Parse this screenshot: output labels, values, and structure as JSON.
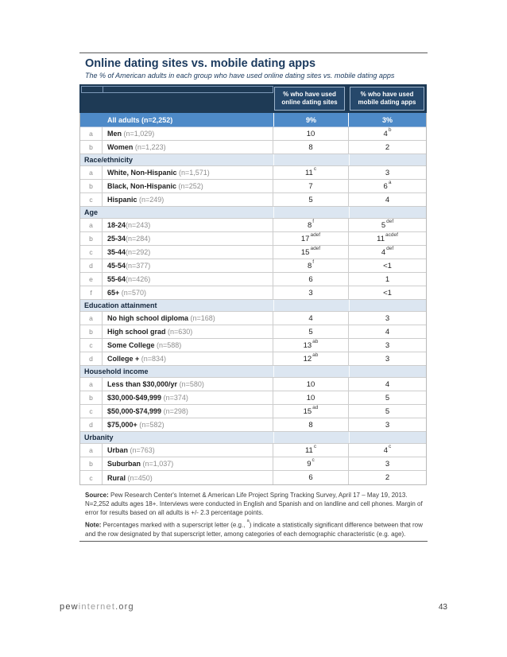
{
  "page": {
    "title": "Online dating sites vs. mobile dating apps",
    "subtitle": "The % of American adults in each group who have used online dating sites vs. mobile dating apps",
    "page_number": "43",
    "footer": {
      "site_part1": "pew",
      "site_part2": "internet",
      "site_part3": ".org"
    }
  },
  "colors": {
    "header_navy": "#1e3a55",
    "header_cell_navy": "#26486b",
    "highlight_blue": "#4e8ac8",
    "section_light_blue": "#dce6f1",
    "title_navy": "#1b3a5e"
  },
  "table": {
    "online_header": "% who have used online dating sites",
    "mobile_header": "% who have used mobile dating apps",
    "all_adults": {
      "label": "All adults (n=2,252)",
      "online": "9%",
      "mobile": "3%"
    },
    "sections": [
      {
        "header": "",
        "rows": [
          {
            "l": "a",
            "t": "Men ",
            "n": "(n=1,029)",
            "v1": "10",
            "s1": "",
            "v2": "4",
            "s2": "b"
          },
          {
            "l": "b",
            "t": "Women ",
            "n": "(n=1,223)",
            "v1": "8",
            "s1": "",
            "v2": "2",
            "s2": ""
          }
        ]
      },
      {
        "header": "Race/ethnicity",
        "rows": [
          {
            "l": "a",
            "t": "White, Non-Hispanic ",
            "n": "(n=1,571)",
            "v1": "11",
            "s1": "c",
            "v2": "3",
            "s2": ""
          },
          {
            "l": "b",
            "t": "Black, Non-Hispanic ",
            "n": "(n=252)",
            "v1": "7",
            "s1": "",
            "v2": "6",
            "s2": "a"
          },
          {
            "l": "c",
            "t": "Hispanic ",
            "n": "(n=249)",
            "v1": "5",
            "s1": "",
            "v2": "4",
            "s2": ""
          }
        ]
      },
      {
        "header": "Age",
        "rows": [
          {
            "l": "a",
            "t": "18-24",
            "n": "(n=243)",
            "v1": "8",
            "s1": "f",
            "v2": "5",
            "s2": "def"
          },
          {
            "l": "b",
            "t": "25-34",
            "n": "(n=284)",
            "v1": "17",
            "s1": "adef",
            "v2": "11",
            "s2": "acdef"
          },
          {
            "l": "c",
            "t": "35-44",
            "n": "(n=292)",
            "v1": "15",
            "s1": "adef",
            "v2": "4",
            "s2": "def"
          },
          {
            "l": "d",
            "t": "45-54",
            "n": "(n=377)",
            "v1": "8",
            "s1": "f",
            "v2": "<1",
            "s2": ""
          },
          {
            "l": "e",
            "t": "55-64",
            "n": "(n=426)",
            "v1": "6",
            "s1": "",
            "v2": "1",
            "s2": ""
          },
          {
            "l": "f",
            "t": "65+ ",
            "n": "(n=570)",
            "v1": "3",
            "s1": "",
            "v2": "<1",
            "s2": ""
          }
        ]
      },
      {
        "header": "Education attainment",
        "rows": [
          {
            "l": "a",
            "t": "No high school diploma ",
            "n": "(n=168)",
            "v1": "4",
            "s1": "",
            "v2": "3",
            "s2": ""
          },
          {
            "l": "b",
            "t": "High school grad ",
            "n": "(n=630)",
            "v1": "5",
            "s1": "",
            "v2": "4",
            "s2": ""
          },
          {
            "l": "c",
            "t": "Some College ",
            "n": "(n=588)",
            "v1": "13",
            "s1": "ab",
            "v2": "3",
            "s2": ""
          },
          {
            "l": "d",
            "t": "College + ",
            "n": "(n=834)",
            "v1": "12",
            "s1": "ab",
            "v2": "3",
            "s2": ""
          }
        ]
      },
      {
        "header": "Household income",
        "rows": [
          {
            "l": "a",
            "t": "Less than $30,000/yr ",
            "n": "(n=580)",
            "v1": "10",
            "s1": "",
            "v2": "4",
            "s2": ""
          },
          {
            "l": "b",
            "t": "$30,000-$49,999 ",
            "n": "(n=374)",
            "v1": "10",
            "s1": "",
            "v2": "5",
            "s2": ""
          },
          {
            "l": "c",
            "t": "$50,000-$74,999 ",
            "n": "(n=298)",
            "v1": "15",
            "s1": "ad",
            "v2": "5",
            "s2": ""
          },
          {
            "l": "d",
            "t": "$75,000+ ",
            "n": "(n=582)",
            "v1": "8",
            "s1": "",
            "v2": "3",
            "s2": ""
          }
        ]
      },
      {
        "header": "Urbanity",
        "rows": [
          {
            "l": "a",
            "t": "Urban ",
            "n": "(n=763)",
            "v1": "11",
            "s1": "c",
            "v2": "4",
            "s2": "c"
          },
          {
            "l": "b",
            "t": "Suburban ",
            "n": "(n=1,037)",
            "v1": "9",
            "s1": "c",
            "v2": "3",
            "s2": ""
          },
          {
            "l": "c",
            "t": "Rural ",
            "n": "(n=450)",
            "v1": "6",
            "s1": "",
            "v2": "2",
            "s2": ""
          }
        ]
      }
    ]
  },
  "source": {
    "label": "Source:",
    "text": " Pew Research Center's Internet & American Life Project Spring Tracking Survey, April 17 – May 19, 2013. N=2,252 adults ages 18+. Interviews were conducted in English and Spanish and on landline and cell phones.  Margin of error for results based on all adults is +/- 2.3 percentage points."
  },
  "note": {
    "label": "Note:",
    "pre": " Percentages marked with a superscript letter (e.g., ",
    "sup": "a",
    "post": ") indicate a statistically significant difference between that row and the row designated by that superscript letter, among categories of each demographic characteristic (e.g. age)."
  }
}
